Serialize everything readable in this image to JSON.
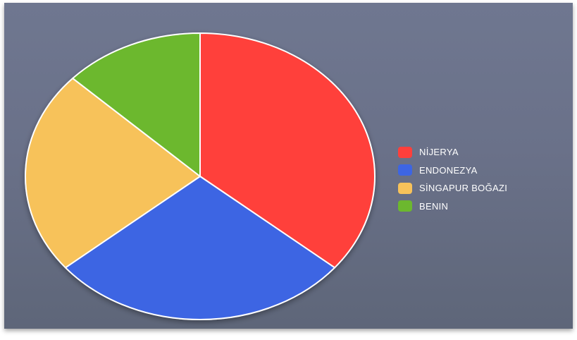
{
  "chart_data": {
    "type": "pie",
    "title": "",
    "categories": [
      "NİJERYA",
      "ENDONEZYA",
      "SİNGAPUR BOĞAZI",
      "BENIN"
    ],
    "values": [
      36,
      28,
      23,
      13
    ],
    "colors": [
      "#ff3f3b",
      "#3d65e3",
      "#f7c25a",
      "#6cb82e"
    ],
    "legend_position": "right",
    "start_angle_deg": 0,
    "direction": "clockwise",
    "slice_border_color": "#ffffff"
  }
}
